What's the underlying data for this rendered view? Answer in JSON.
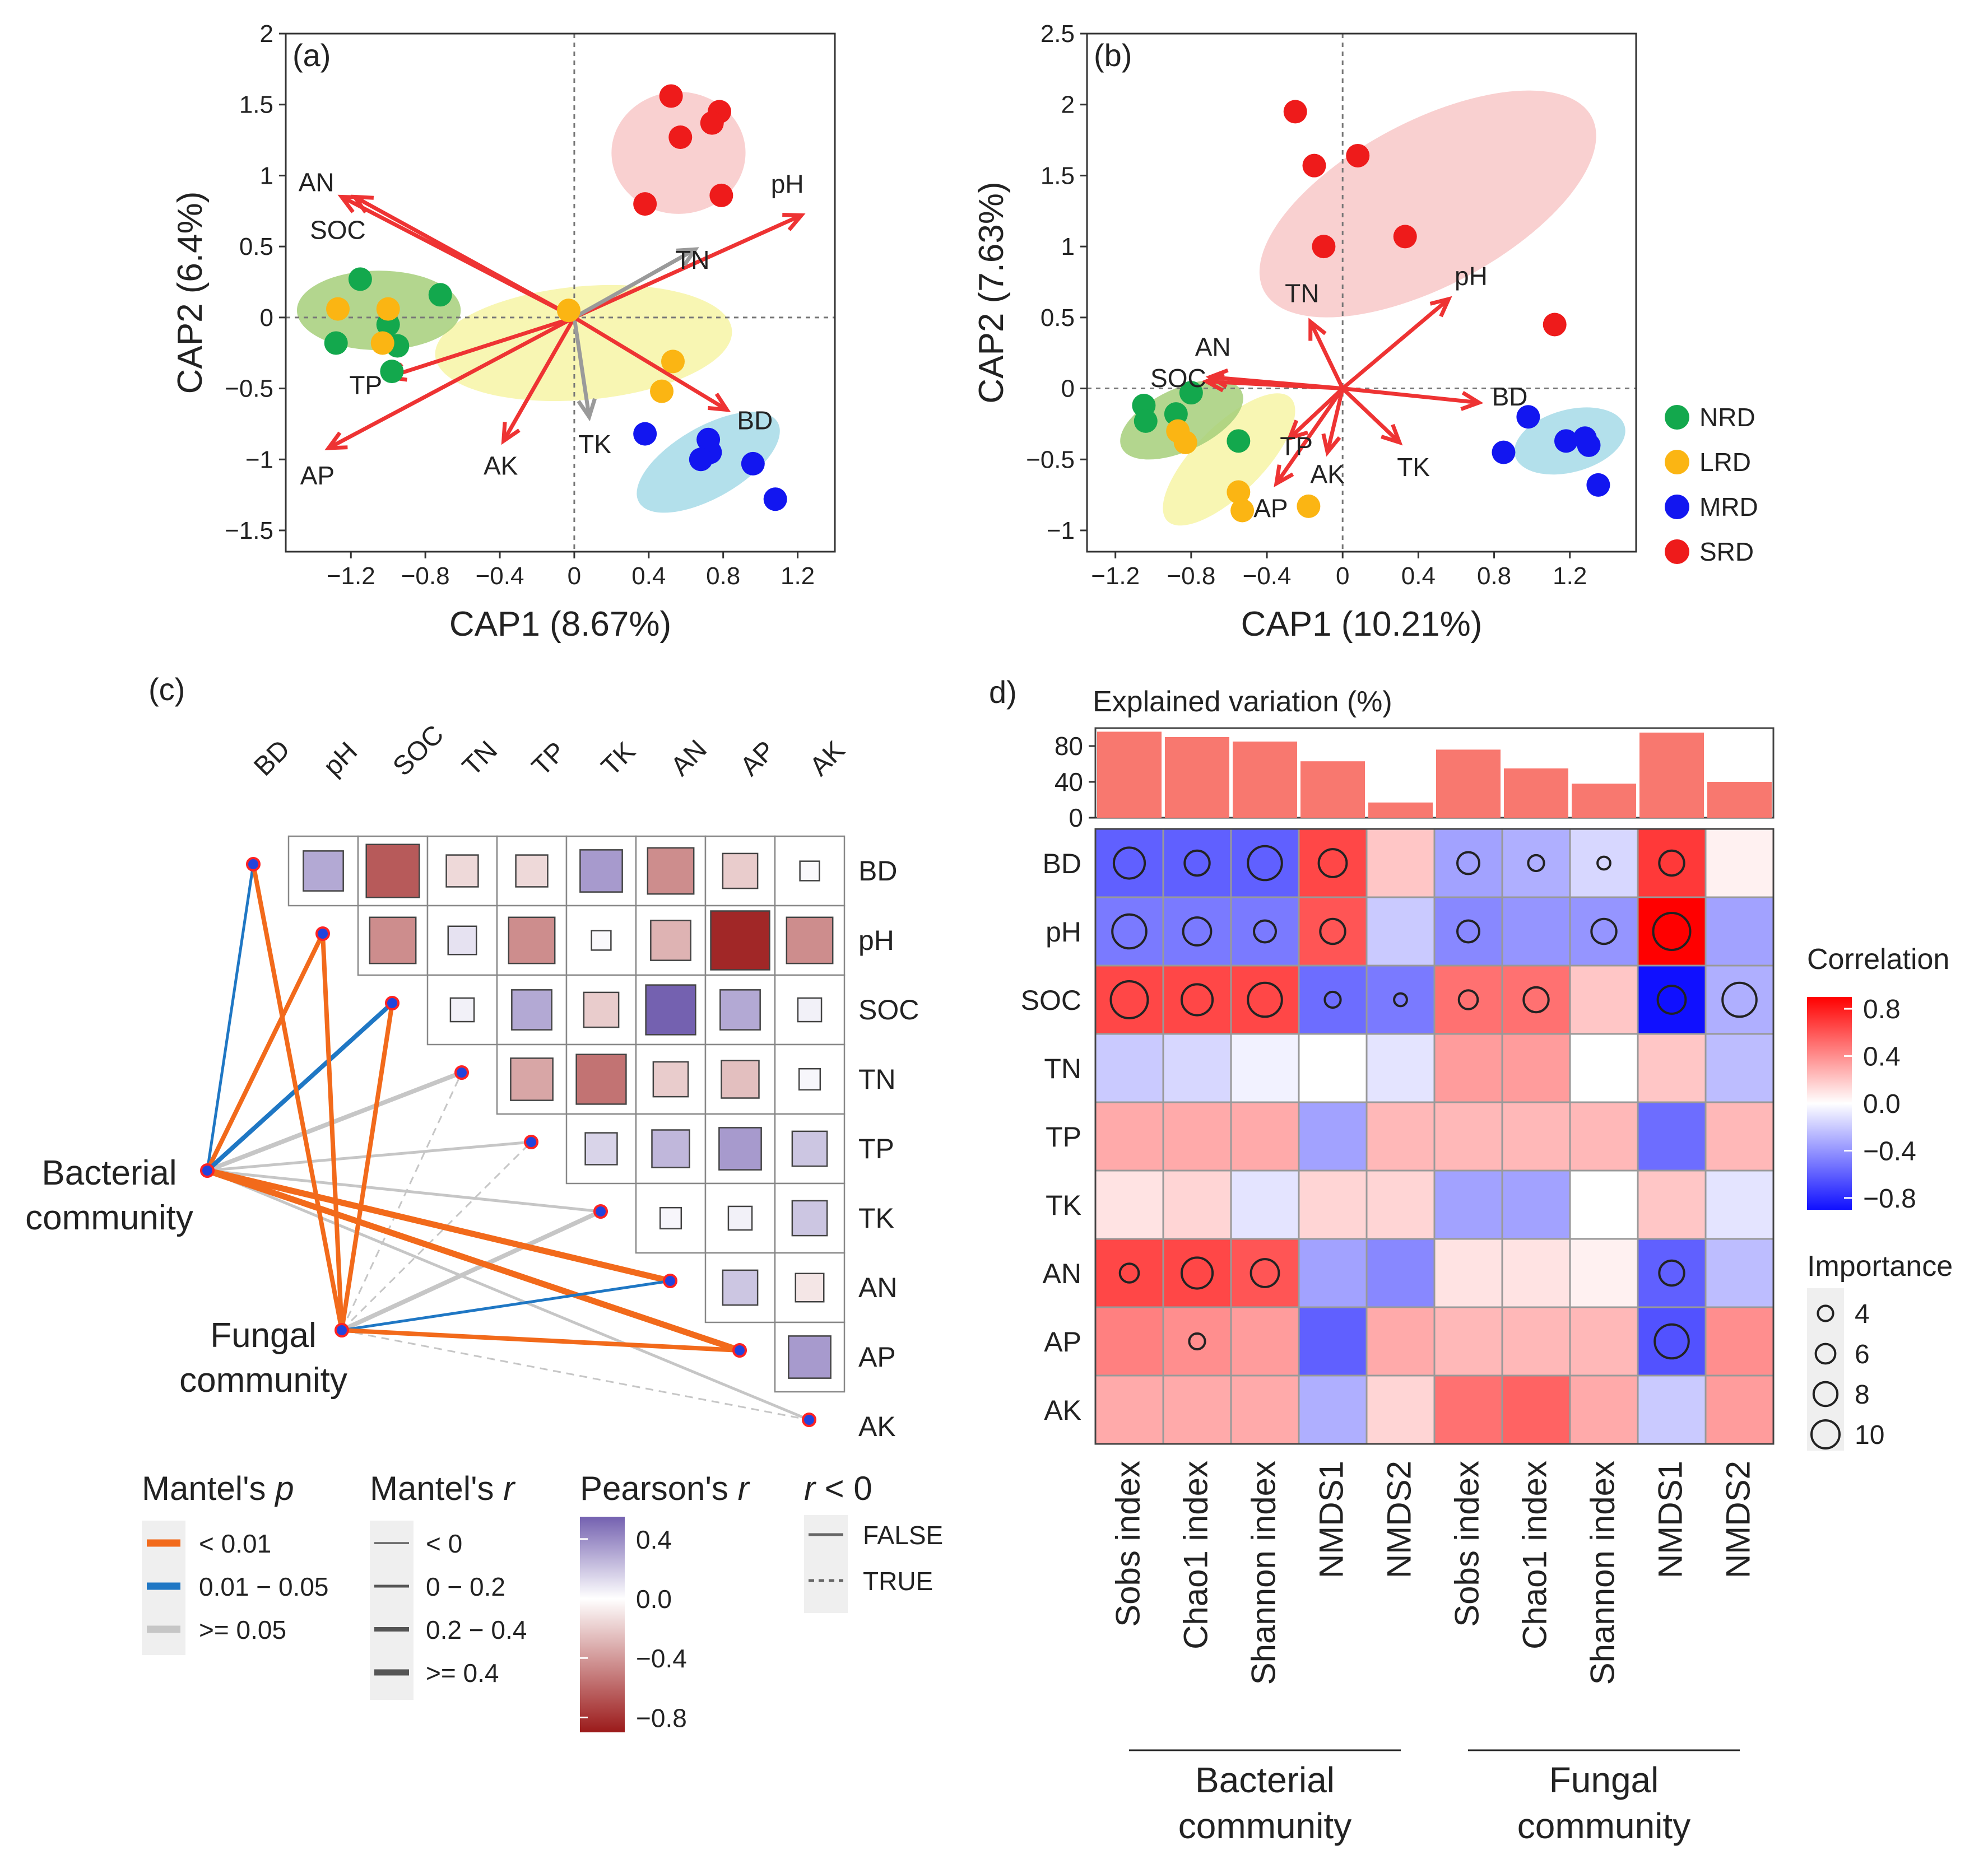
{
  "chart_data": [
    {
      "panel_label": "(a)",
      "type": "scatter",
      "xlabel": "CAP1 (8.67%)",
      "ylabel": "CAP2 (6.4%)",
      "xlim": [
        -1.55,
        1.4
      ],
      "ylim": [
        -1.65,
        2.0
      ],
      "xticks": [
        -1.2,
        -0.8,
        -0.4,
        0,
        0.4,
        0.8,
        1.2
      ],
      "xtick_labels": [
        "−1.2",
        "−0.8",
        "−0.4",
        "0",
        "0.4",
        "0.8",
        "1.2"
      ],
      "yticks": [
        -1.5,
        -1,
        -0.5,
        0,
        0.5,
        1,
        1.5,
        2
      ],
      "ytick_labels": [
        "−1.5",
        "−1",
        "−0.5",
        "0",
        "0.5",
        "1",
        "1.5",
        "2"
      ],
      "ellipses": [
        {
          "group": "SRD",
          "cx": 0.56,
          "cy": 1.16,
          "rx": 0.36,
          "ry": 0.43,
          "angle": 0
        },
        {
          "group": "LRD",
          "cx": 0.05,
          "cy": -0.18,
          "rx": 0.8,
          "ry": 0.4,
          "angle": -5
        },
        {
          "group": "NRD",
          "cx": -1.05,
          "cy": 0.05,
          "rx": 0.44,
          "ry": 0.28,
          "angle": 0
        },
        {
          "group": "MRD",
          "cx": 0.72,
          "cy": -1.02,
          "rx": 0.43,
          "ry": 0.25,
          "angle": -30
        }
      ],
      "series": [
        {
          "name": "NRD",
          "points": [
            [
              -1.15,
              0.27
            ],
            [
              -0.72,
              0.16
            ],
            [
              -1.28,
              -0.18
            ],
            [
              -1.0,
              -0.05
            ],
            [
              -0.95,
              -0.2
            ],
            [
              -0.98,
              -0.38
            ]
          ]
        },
        {
          "name": "LRD",
          "points": [
            [
              -1.27,
              0.06
            ],
            [
              -1.0,
              0.06
            ],
            [
              -1.03,
              -0.18
            ],
            [
              0.53,
              -0.31
            ],
            [
              0.47,
              -0.52
            ],
            [
              -0.03,
              0.05
            ]
          ]
        },
        {
          "name": "MRD",
          "points": [
            [
              0.38,
              -0.82
            ],
            [
              0.72,
              -0.86
            ],
            [
              0.73,
              -0.95
            ],
            [
              0.68,
              -1.0
            ],
            [
              0.96,
              -1.03
            ],
            [
              1.08,
              -1.28
            ]
          ]
        },
        {
          "name": "SRD",
          "points": [
            [
              0.52,
              1.56
            ],
            [
              0.78,
              1.45
            ],
            [
              0.74,
              1.37
            ],
            [
              0.57,
              1.27
            ],
            [
              0.38,
              0.8
            ],
            [
              0.79,
              0.86
            ]
          ]
        }
      ],
      "vectors": [
        {
          "label": "AN",
          "x": -1.25,
          "y": 0.85,
          "color": "red"
        },
        {
          "label": "SOC",
          "x": -1.18,
          "y": 0.85,
          "color": "red"
        },
        {
          "label": "pH",
          "x": 1.22,
          "y": 0.72,
          "color": "red"
        },
        {
          "label": "TN",
          "x": 0.65,
          "y": 0.48,
          "color": "gray"
        },
        {
          "label": "TP",
          "x": -1.0,
          "y": -0.42,
          "color": "red"
        },
        {
          "label": "AP",
          "x": -1.32,
          "y": -0.92,
          "color": "red"
        },
        {
          "label": "AK",
          "x": -0.38,
          "y": -0.87,
          "color": "red"
        },
        {
          "label": "TK",
          "x": 0.08,
          "y": -0.7,
          "color": "gray"
        },
        {
          "label": "BD",
          "x": 0.82,
          "y": -0.65,
          "color": "red"
        }
      ]
    },
    {
      "panel_label": "(b)",
      "type": "scatter",
      "xlabel": "CAP1 (10.21%)",
      "ylabel": "CAP2 (7.63%)",
      "xlim": [
        -1.35,
        1.55
      ],
      "ylim": [
        -1.15,
        2.5
      ],
      "xticks": [
        -1.2,
        -0.8,
        -0.4,
        0,
        0.4,
        0.8,
        1.2
      ],
      "xtick_labels": [
        "−1.2",
        "−0.8",
        "−0.4",
        "0",
        "0.4",
        "0.8",
        "1.2"
      ],
      "yticks": [
        -1,
        -0.5,
        0,
        0.5,
        1,
        1.5,
        2,
        2.5
      ],
      "ytick_labels": [
        "−1",
        "−0.5",
        "0",
        "0.5",
        "1",
        "1.5",
        "2",
        "2.5"
      ],
      "ellipses": [
        {
          "group": "SRD",
          "cx": 0.45,
          "cy": 1.3,
          "rx": 0.98,
          "ry": 0.58,
          "angle": -28
        },
        {
          "group": "LRD",
          "cx": -0.6,
          "cy": -0.5,
          "rx": 0.46,
          "ry": 0.24,
          "angle": -45
        },
        {
          "group": "NRD",
          "cx": -0.85,
          "cy": -0.22,
          "rx": 0.35,
          "ry": 0.22,
          "angle": -25
        },
        {
          "group": "MRD",
          "cx": 1.2,
          "cy": -0.37,
          "rx": 0.3,
          "ry": 0.22,
          "angle": -15
        }
      ],
      "series": [
        {
          "name": "NRD",
          "points": [
            [
              -1.05,
              -0.12
            ],
            [
              -1.04,
              -0.23
            ],
            [
              -0.88,
              -0.18
            ],
            [
              -0.8,
              -0.03
            ],
            [
              -0.55,
              -0.37
            ]
          ]
        },
        {
          "name": "LRD",
          "points": [
            [
              -0.87,
              -0.3
            ],
            [
              -0.83,
              -0.38
            ],
            [
              -0.55,
              -0.73
            ],
            [
              -0.53,
              -0.86
            ],
            [
              -0.18,
              -0.83
            ]
          ]
        },
        {
          "name": "MRD",
          "points": [
            [
              0.85,
              -0.45
            ],
            [
              0.98,
              -0.2
            ],
            [
              1.18,
              -0.37
            ],
            [
              1.28,
              -0.35
            ],
            [
              1.3,
              -0.4
            ],
            [
              1.35,
              -0.68
            ]
          ]
        },
        {
          "name": "SRD",
          "points": [
            [
              -0.25,
              1.95
            ],
            [
              -0.15,
              1.57
            ],
            [
              0.08,
              1.64
            ],
            [
              -0.1,
              1.0
            ],
            [
              0.33,
              1.07
            ],
            [
              1.12,
              0.45
            ]
          ]
        }
      ],
      "vectors": [
        {
          "label": "SOC",
          "x": -0.72,
          "y": 0.05,
          "color": "red"
        },
        {
          "label": "AN",
          "x": -0.7,
          "y": 0.08,
          "color": "red"
        },
        {
          "label": "pH",
          "x": 0.56,
          "y": 0.63,
          "color": "red"
        },
        {
          "label": "TN",
          "x": -0.17,
          "y": 0.47,
          "color": "red"
        },
        {
          "label": "TP",
          "x": -0.28,
          "y": -0.35,
          "color": "red"
        },
        {
          "label": "AP",
          "x": -0.35,
          "y": -0.67,
          "color": "red"
        },
        {
          "label": "AK",
          "x": -0.08,
          "y": -0.45,
          "color": "red"
        },
        {
          "label": "TK",
          "x": 0.3,
          "y": -0.38,
          "color": "red"
        },
        {
          "label": "BD",
          "x": 0.72,
          "y": -0.1,
          "color": "red"
        }
      ],
      "legend": [
        "NRD",
        "LRD",
        "MRD",
        "SRD"
      ]
    },
    {
      "panel_label": "(c)",
      "type": "heatmap",
      "variables": [
        "BD",
        "pH",
        "SOC",
        "TN",
        "TP",
        "TK",
        "AN",
        "AP",
        "AK"
      ],
      "pearson": [
        [
          null,
          0.3,
          -0.65,
          -0.15,
          -0.15,
          0.35,
          -0.45,
          -0.2,
          0.02
        ],
        [
          null,
          null,
          -0.45,
          0.1,
          -0.45,
          0.02,
          -0.3,
          -0.85,
          -0.45
        ],
        [
          null,
          null,
          null,
          0.05,
          0.3,
          -0.2,
          0.55,
          0.3,
          0.05
        ],
        [
          null,
          null,
          null,
          null,
          -0.35,
          -0.55,
          -0.2,
          -0.25,
          0.03
        ],
        [
          null,
          null,
          null,
          null,
          null,
          0.15,
          0.25,
          0.35,
          0.2
        ],
        [
          null,
          null,
          null,
          null,
          null,
          null,
          0.03,
          0.05,
          0.2
        ],
        [
          null,
          null,
          null,
          null,
          null,
          null,
          null,
          0.2,
          -0.1
        ],
        [
          null,
          null,
          null,
          null,
          null,
          null,
          null,
          null,
          0.35
        ],
        [
          null,
          null,
          null,
          null,
          null,
          null,
          null,
          null,
          null
        ]
      ],
      "sources": [
        "Bacterial community",
        "Fungal community"
      ],
      "links": [
        {
          "from": "Bacterial community",
          "to": "BD",
          "p": "0.01 − 0.05",
          "r": "0 − 0.2",
          "neg": false
        },
        {
          "from": "Bacterial community",
          "to": "pH",
          "p": "< 0.01",
          "r": "0.2 − 0.4",
          "neg": false
        },
        {
          "from": "Bacterial community",
          "to": "SOC",
          "p": "0.01 − 0.05",
          "r": "0.2 − 0.4",
          "neg": false
        },
        {
          "from": "Bacterial community",
          "to": "TN",
          "p": ">= 0.05",
          "r": "0.2 − 0.4",
          "neg": false
        },
        {
          "from": "Bacterial community",
          "to": "TP",
          "p": ">= 0.05",
          "r": "0 − 0.2",
          "neg": false
        },
        {
          "from": "Bacterial community",
          "to": "TK",
          "p": ">= 0.05",
          "r": "0 − 0.2",
          "neg": false
        },
        {
          "from": "Bacterial community",
          "to": "AN",
          "p": "< 0.01",
          "r": ">= 0.4",
          "neg": false
        },
        {
          "from": "Bacterial community",
          "to": "AP",
          "p": "< 0.01",
          "r": ">= 0.4",
          "neg": false
        },
        {
          "from": "Bacterial community",
          "to": "AK",
          "p": ">= 0.05",
          "r": "0 − 0.2",
          "neg": false
        },
        {
          "from": "Fungal community",
          "to": "BD",
          "p": "< 0.01",
          "r": "0.2 − 0.4",
          "neg": false
        },
        {
          "from": "Fungal community",
          "to": "pH",
          "p": "< 0.01",
          "r": "0.2 − 0.4",
          "neg": false
        },
        {
          "from": "Fungal community",
          "to": "SOC",
          "p": "< 0.01",
          "r": "0.2 − 0.4",
          "neg": false
        },
        {
          "from": "Fungal community",
          "to": "TN",
          "p": ">= 0.05",
          "r": "< 0",
          "neg": true
        },
        {
          "from": "Fungal community",
          "to": "TP",
          "p": ">= 0.05",
          "r": "< 0",
          "neg": true
        },
        {
          "from": "Fungal community",
          "to": "TK",
          "p": ">= 0.05",
          "r": "0.2 − 0.4",
          "neg": false
        },
        {
          "from": "Fungal community",
          "to": "AN",
          "p": "0.01 − 0.05",
          "r": "0 − 0.2",
          "neg": false
        },
        {
          "from": "Fungal community",
          "to": "AP",
          "p": "< 0.01",
          "r": "0.2 − 0.4",
          "neg": false
        },
        {
          "from": "Fungal community",
          "to": "AK",
          "p": ">= 0.05",
          "r": "< 0",
          "neg": true
        }
      ],
      "legend": {
        "mantel_p": {
          "title": "Mantel's ",
          "title_italic": "p",
          "items": [
            "< 0.01",
            "0.01 − 0.05",
            ">= 0.05"
          ]
        },
        "mantel_r": {
          "title": "Mantel's ",
          "title_italic": "r",
          "items": [
            "< 0",
            "0 − 0.2",
            "0.2 − 0.4",
            ">= 0.4"
          ]
        },
        "pearson_r": {
          "title": "Pearson's ",
          "title_italic": "r",
          "ticks": [
            "0.4",
            "0.0",
            "−0.4",
            "−0.8"
          ],
          "tick_values": [
            0.4,
            0,
            -0.4,
            -0.8
          ],
          "range": [
            -0.9,
            0.55
          ]
        },
        "r_neg": {
          "title_italic": "r",
          "title": " < 0",
          "items": [
            "FALSE",
            "TRUE"
          ]
        }
      }
    },
    {
      "panel_label": "d)",
      "type": "heatmap",
      "bar_title": "Explained variation (%)",
      "bar_yticks": [
        0,
        40,
        80
      ],
      "bar_ymax": 100,
      "explained_variation": [
        96,
        90,
        85,
        63,
        17,
        76,
        55,
        38,
        95,
        40
      ],
      "columns": [
        "Sobs index",
        "Chao1 index",
        "Shannon index",
        "NMDS1",
        "NMDS2",
        "Sobs index",
        "Chao1 index",
        "Shannon index",
        "NMDS1",
        "NMDS2"
      ],
      "groups": [
        {
          "name": [
            "Bacterial",
            "community"
          ],
          "start": 0,
          "end": 4
        },
        {
          "name": [
            "Fungal",
            "community"
          ],
          "start": 5,
          "end": 9
        }
      ],
      "rows": [
        "BD",
        "pH",
        "SOC",
        "TN",
        "TP",
        "TK",
        "AN",
        "AP",
        "AK"
      ],
      "correlation": [
        [
          -0.6,
          -0.6,
          -0.6,
          0.65,
          0.2,
          -0.35,
          -0.3,
          -0.15,
          0.7,
          0.05
        ],
        [
          -0.5,
          -0.5,
          -0.5,
          0.6,
          -0.2,
          -0.45,
          -0.4,
          -0.4,
          0.9,
          -0.35
        ],
        [
          0.65,
          0.65,
          0.65,
          -0.55,
          -0.5,
          0.5,
          0.5,
          0.2,
          -0.95,
          -0.3
        ],
        [
          -0.2,
          -0.15,
          -0.05,
          0.0,
          -0.1,
          0.35,
          0.35,
          0.0,
          0.2,
          -0.25
        ],
        [
          0.3,
          0.3,
          0.3,
          -0.35,
          0.25,
          0.25,
          0.25,
          0.25,
          -0.55,
          0.25
        ],
        [
          0.1,
          0.15,
          -0.1,
          0.15,
          0.15,
          -0.35,
          -0.35,
          0.0,
          0.2,
          -0.1
        ],
        [
          0.65,
          0.65,
          0.6,
          -0.35,
          -0.45,
          0.1,
          0.1,
          0.05,
          -0.6,
          -0.25
        ],
        [
          0.45,
          0.4,
          0.35,
          -0.6,
          0.3,
          0.25,
          0.25,
          0.25,
          -0.65,
          0.4
        ],
        [
          0.3,
          0.3,
          0.3,
          -0.3,
          0.15,
          0.5,
          0.55,
          0.3,
          -0.2,
          0.35
        ]
      ],
      "importance": [
        [
          8,
          6,
          9,
          7,
          null,
          5,
          3,
          2,
          6,
          null
        ],
        [
          9,
          7,
          5,
          6,
          null,
          5,
          null,
          6,
          10,
          null
        ],
        [
          10,
          8,
          9,
          3,
          2,
          4,
          6,
          null,
          7,
          9
        ],
        [
          null,
          null,
          null,
          null,
          null,
          null,
          null,
          null,
          null,
          null
        ],
        [
          null,
          null,
          null,
          null,
          null,
          null,
          null,
          null,
          null,
          null
        ],
        [
          null,
          null,
          null,
          null,
          null,
          null,
          null,
          null,
          null,
          null
        ],
        [
          4,
          8,
          7,
          null,
          null,
          null,
          null,
          null,
          6,
          null
        ],
        [
          null,
          3,
          null,
          null,
          null,
          null,
          null,
          null,
          9,
          null
        ],
        [
          null,
          null,
          null,
          null,
          null,
          null,
          null,
          null,
          null,
          null
        ]
      ],
      "legend": {
        "correlation_title": "Correlation",
        "correlation_ticks": [
          "0.8",
          "0.4",
          "0.0",
          "−0.4",
          "−0.8"
        ],
        "correlation_tick_values": [
          0.8,
          0.4,
          0,
          -0.4,
          -0.8
        ],
        "importance_title": "Importance",
        "importance_items": [
          "4",
          "6",
          "8",
          "10"
        ],
        "importance_values": [
          4,
          6,
          8,
          10
        ]
      }
    }
  ],
  "colors": {
    "NRD": "#13a84d",
    "LRD": "#fbb513",
    "MRD": "#1216f0",
    "SRD": "#ee1b1b",
    "ell_NRD": "#a6cf7a",
    "ell_LRD": "#f7f5a6",
    "ell_MRD": "#a6dae8",
    "ell_SRD": "#f8c8c8",
    "arrow_red": "#ee3333",
    "arrow_gray": "#9a9a9a",
    "p_lt01": "#f26a1b",
    "p_01_05": "#1f77c4",
    "p_ge05": "#c6c6c6",
    "pearson_pos": "#7461b0",
    "pearson_neg": "#9b1a1a",
    "corr_pos": "#ff0000",
    "corr_neg": "#1010ff",
    "bar": "#f8786f"
  }
}
